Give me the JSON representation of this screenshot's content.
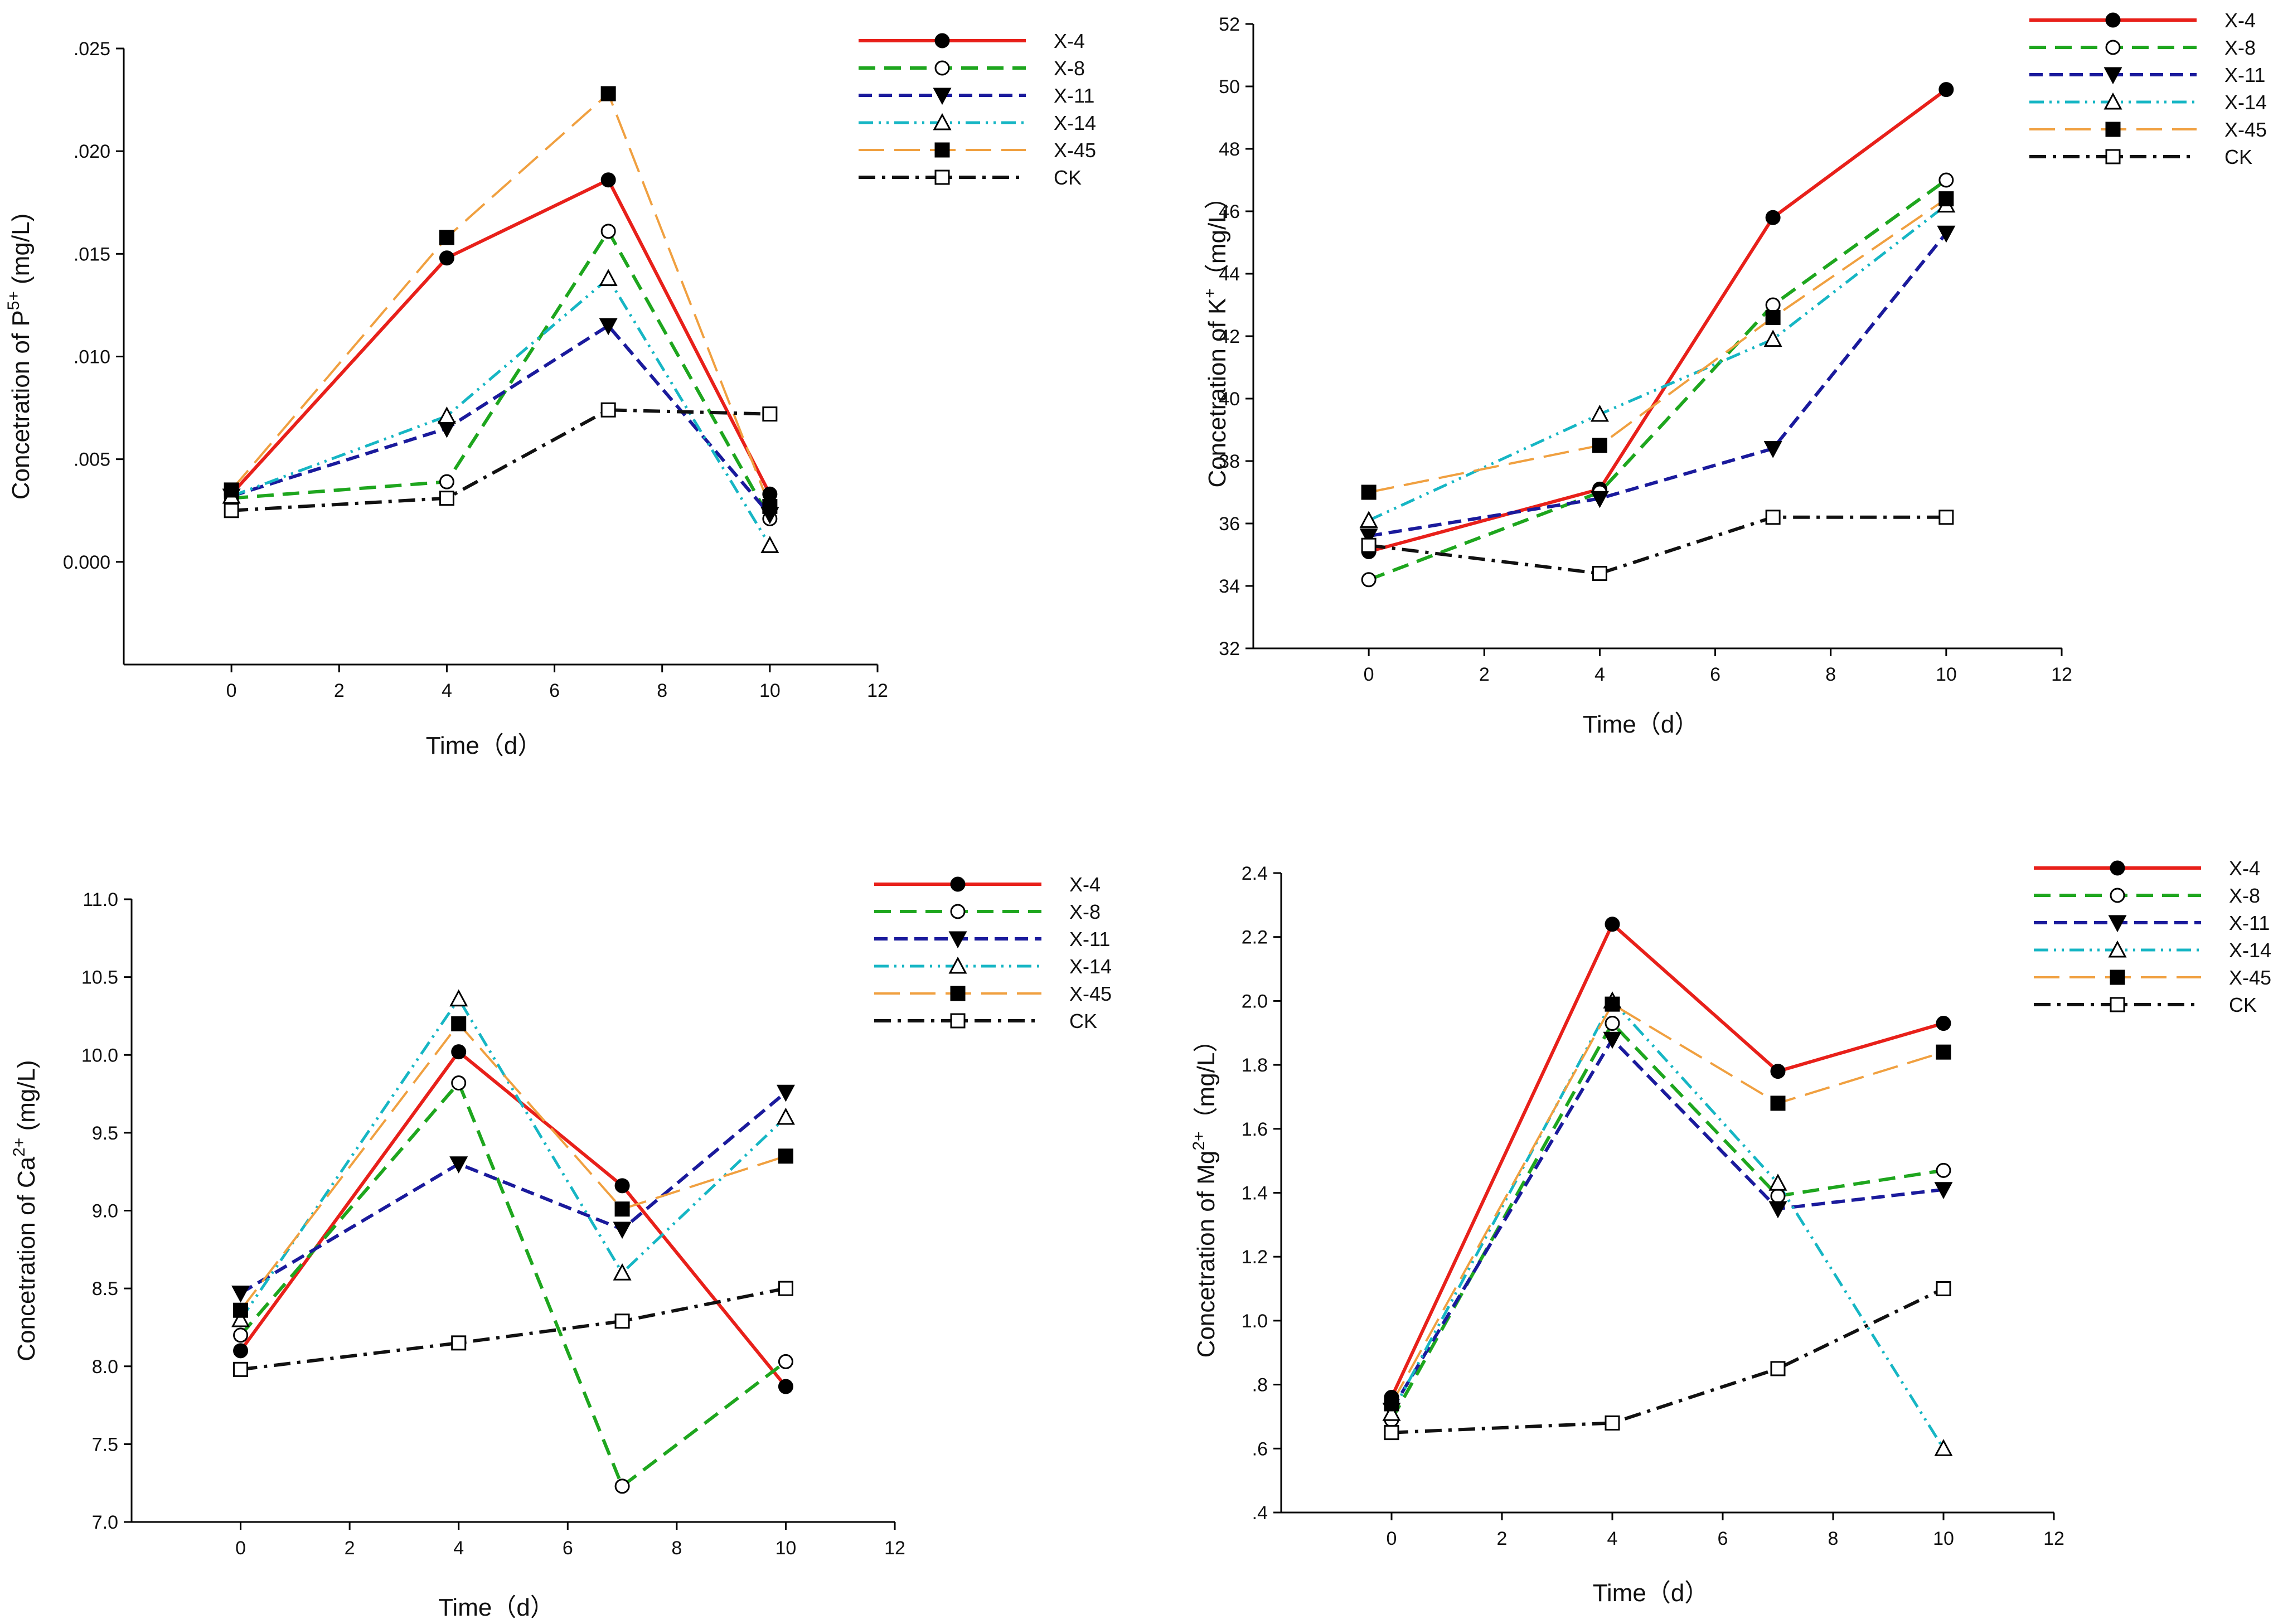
{
  "chart_data": [
    {
      "id": "p",
      "type": "line",
      "xlabel": "Time（d）",
      "ylabel": {
        "prefix": "Concetration of P",
        "sup": "5+",
        "suffix": " (mg/L)"
      },
      "xlim": [
        -2,
        12
      ],
      "ylim": [
        -0.005,
        0.025
      ],
      "xticks": [
        0,
        2,
        4,
        6,
        8,
        10,
        12
      ],
      "yticks": [
        0,
        0.005,
        0.01,
        0.015,
        0.02,
        0.025
      ],
      "ytick_labels": [
        "0.000",
        ".005",
        ".010",
        ".015",
        ".020",
        ".025"
      ],
      "x": [
        0,
        4,
        7,
        10
      ],
      "series": [
        {
          "name": "X-4",
          "values": [
            0.0033,
            0.0148,
            0.0186,
            0.0033
          ]
        },
        {
          "name": "X-8",
          "values": [
            0.0031,
            0.0039,
            0.0161,
            0.0021
          ]
        },
        {
          "name": "X-11",
          "values": [
            0.0032,
            0.0065,
            0.0115,
            0.0023
          ]
        },
        {
          "name": "X-14",
          "values": [
            0.0032,
            0.0071,
            0.0138,
            0.0008
          ]
        },
        {
          "name": "X-45",
          "values": [
            0.0035,
            0.0158,
            0.0228,
            0.0027
          ]
        },
        {
          "name": "CK",
          "values": [
            0.0025,
            0.0031,
            0.0074,
            0.0072
          ]
        }
      ]
    },
    {
      "id": "k",
      "type": "line",
      "xlabel": "Time（d）",
      "ylabel": {
        "prefix": "Concetration of K",
        "sup": "+",
        "suffix": "（mg/L）"
      },
      "xlim": [
        -2,
        12
      ],
      "ylim": [
        32,
        52
      ],
      "xticks": [
        0,
        2,
        4,
        6,
        8,
        10,
        12
      ],
      "yticks": [
        32,
        34,
        36,
        38,
        40,
        42,
        44,
        46,
        48,
        50,
        52
      ],
      "ytick_labels": [
        "32",
        "34",
        "36",
        "38",
        "40",
        "42",
        "44",
        "46",
        "48",
        "50",
        "52"
      ],
      "x": [
        0,
        4,
        7,
        10
      ],
      "series": [
        {
          "name": "X-4",
          "values": [
            35.1,
            37.1,
            45.8,
            49.9
          ]
        },
        {
          "name": "X-8",
          "values": [
            34.2,
            37.0,
            43.0,
            47.0
          ]
        },
        {
          "name": "X-11",
          "values": [
            35.6,
            36.8,
            38.4,
            45.3
          ]
        },
        {
          "name": "X-14",
          "values": [
            36.1,
            39.5,
            41.9,
            46.2
          ]
        },
        {
          "name": "X-45",
          "values": [
            37.0,
            38.5,
            42.6,
            46.4
          ]
        },
        {
          "name": "CK",
          "values": [
            35.3,
            34.4,
            36.2,
            36.2
          ]
        }
      ]
    },
    {
      "id": "ca",
      "type": "line",
      "xlabel": "Time（d）",
      "ylabel": {
        "prefix": "Concetration of Ca",
        "sup": "2+",
        "suffix": " (mg/L)"
      },
      "xlim": [
        -2,
        12
      ],
      "ylim": [
        7.0,
        11.0
      ],
      "xticks": [
        0,
        2,
        4,
        6,
        8,
        10,
        12
      ],
      "yticks": [
        7.0,
        7.5,
        8.0,
        8.5,
        9.0,
        9.5,
        10.0,
        10.5,
        11.0
      ],
      "ytick_labels": [
        "7.0",
        "7.5",
        "8.0",
        "8.5",
        "9.0",
        "9.5",
        "10.0",
        "10.5",
        "11.0"
      ],
      "x": [
        0,
        4,
        7,
        10
      ],
      "series": [
        {
          "name": "X-4",
          "values": [
            8.1,
            10.02,
            9.16,
            7.87
          ]
        },
        {
          "name": "X-8",
          "values": [
            8.2,
            9.82,
            7.23,
            8.03
          ]
        },
        {
          "name": "X-11",
          "values": [
            8.47,
            9.3,
            8.88,
            9.76
          ]
        },
        {
          "name": "X-14",
          "values": [
            8.3,
            10.36,
            8.6,
            9.6
          ]
        },
        {
          "name": "X-45",
          "values": [
            8.36,
            10.2,
            9.01,
            9.35
          ]
        },
        {
          "name": "CK",
          "values": [
            7.98,
            8.15,
            8.29,
            8.5
          ]
        }
      ]
    },
    {
      "id": "mg",
      "type": "line",
      "xlabel": "Time（d）",
      "ylabel": {
        "prefix": "Concetration of Mg",
        "sup": "2+",
        "suffix": "（mg/L）"
      },
      "xlim": [
        -2,
        12
      ],
      "ylim": [
        0.4,
        2.4
      ],
      "xticks": [
        0,
        2,
        4,
        6,
        8,
        10,
        12
      ],
      "yticks": [
        0.4,
        0.6,
        0.8,
        1.0,
        1.2,
        1.4,
        1.6,
        1.8,
        2.0,
        2.2,
        2.4
      ],
      "ytick_labels": [
        ".4",
        ".6",
        ".8",
        "1.0",
        "1.2",
        "1.4",
        "1.6",
        "1.8",
        "2.0",
        "2.2",
        "2.4"
      ],
      "x": [
        0,
        4,
        7,
        10
      ],
      "series": [
        {
          "name": "X-4",
          "values": [
            0.76,
            2.24,
            1.78,
            1.93
          ]
        },
        {
          "name": "X-8",
          "values": [
            0.69,
            1.93,
            1.39,
            1.47
          ]
        },
        {
          "name": "X-11",
          "values": [
            0.72,
            1.88,
            1.35,
            1.41
          ]
        },
        {
          "name": "X-14",
          "values": [
            0.71,
            2.0,
            1.43,
            0.6
          ]
        },
        {
          "name": "X-45",
          "values": [
            0.74,
            1.99,
            1.68,
            1.84
          ]
        },
        {
          "name": "CK",
          "values": [
            0.65,
            0.68,
            0.85,
            1.1
          ]
        }
      ]
    }
  ],
  "series_styles": [
    {
      "name": "X-4",
      "color": "#e8201a",
      "marker": "circle-filled"
    },
    {
      "name": "X-8",
      "color": "#1ea61e",
      "marker": "circle-open"
    },
    {
      "name": "X-11",
      "color": "#1a1a9c",
      "marker": "triangle-down-filled"
    },
    {
      "name": "X-14",
      "color": "#16b6c4",
      "marker": "triangle-up-open"
    },
    {
      "name": "X-45",
      "color": "#f0a040",
      "marker": "square-filled"
    },
    {
      "name": "CK",
      "color": "#111111",
      "marker": "square-open"
    }
  ]
}
